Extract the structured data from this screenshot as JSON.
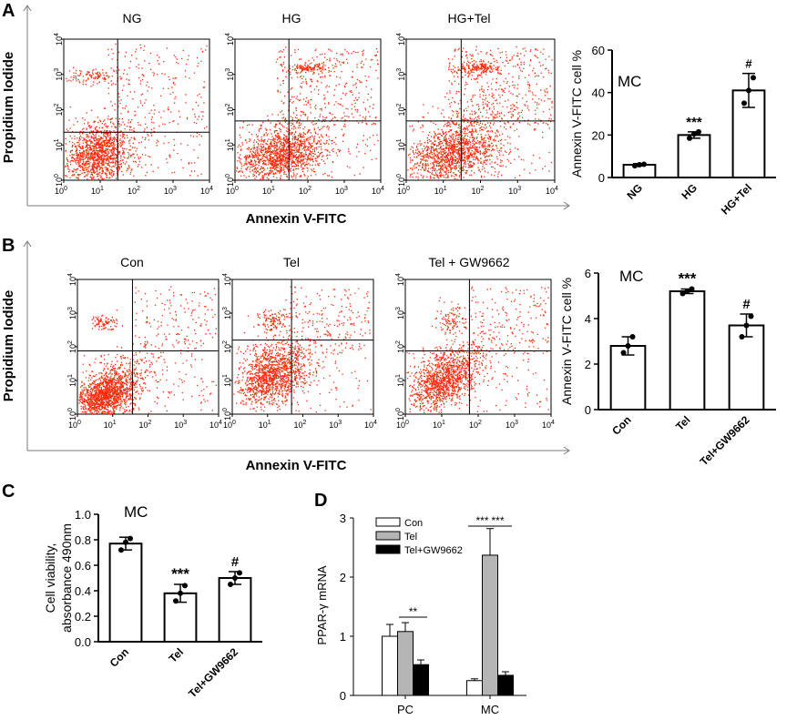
{
  "panels": {
    "A": {
      "letter": "A",
      "flow": {
        "titles": [
          "NG",
          "HG",
          "HG+Tel"
        ],
        "ylabel": "Propidium Iodide",
        "xlabel": "Annexin V-FITC",
        "tick_exponents": [
          "0",
          "1",
          "2",
          "3",
          "4"
        ],
        "tick_base": "10"
      },
      "bar": {
        "inset_label": "MC",
        "ylabel": "Annexin V-FITC cell %"
      }
    },
    "B": {
      "letter": "B",
      "flow": {
        "titles": [
          "Con",
          "Tel",
          "Tel + GW9662"
        ],
        "ylabel": "Propidium Iodide",
        "xlabel": "Annexin V-FITC",
        "tick_exponents": [
          "0",
          "1",
          "2",
          "3",
          "4"
        ],
        "tick_base": "10"
      },
      "bar": {
        "inset_label": "MC",
        "ylabel": "Annexin V-FITC cell %"
      }
    },
    "C": {
      "letter": "C",
      "inset_label": "MC",
      "ylabel_line1": "Cell viability,",
      "ylabel_line2": "absorbance 490nm"
    },
    "D": {
      "letter": "D",
      "ylabel": "PPAR-γ  mRNA"
    }
  },
  "chart_data": [
    {
      "id": "A-bar",
      "type": "bar",
      "categories": [
        "NG",
        "HG",
        "HG+Tel"
      ],
      "values": [
        6,
        20,
        41
      ],
      "errors": [
        0.5,
        1.5,
        8
      ],
      "points": [
        [
          5.5,
          6.0,
          6.2
        ],
        [
          18.5,
          20.5,
          21.5
        ],
        [
          35,
          41,
          47
        ]
      ],
      "significance": [
        "",
        "***",
        "#"
      ],
      "ylim": [
        0,
        60
      ],
      "yticks": [
        "0",
        "20",
        "40",
        "60"
      ],
      "ylabel": "Annexin V-FITC cell %"
    },
    {
      "id": "B-bar",
      "type": "bar",
      "categories": [
        "Con",
        "Tel",
        "Tel+GW9662"
      ],
      "values": [
        2.8,
        5.2,
        3.7
      ],
      "errors": [
        0.4,
        0.1,
        0.5
      ],
      "points": [
        [
          2.5,
          2.8,
          3.2
        ],
        [
          5.1,
          5.2,
          5.3
        ],
        [
          3.2,
          3.7,
          4.1
        ]
      ],
      "significance": [
        "",
        "***",
        "#"
      ],
      "ylim": [
        0,
        6
      ],
      "yticks": [
        "0",
        "2",
        "4",
        "6"
      ],
      "ylabel": "Annexin V-FITC cell %"
    },
    {
      "id": "C-bar",
      "type": "bar",
      "categories": [
        "Con",
        "Tel",
        "Tel+GW9662"
      ],
      "values": [
        0.77,
        0.38,
        0.5
      ],
      "errors": [
        0.05,
        0.07,
        0.05
      ],
      "points": [
        [
          0.72,
          0.78,
          0.81
        ],
        [
          0.32,
          0.38,
          0.44
        ],
        [
          0.45,
          0.5,
          0.54
        ]
      ],
      "significance": [
        "",
        "***",
        "#"
      ],
      "ylim": [
        0,
        1.0
      ],
      "yticks": [
        "0.0",
        "0.2",
        "0.4",
        "0.6",
        "0.8",
        "1.0"
      ],
      "ylabel": "Cell viability, absorbance 490nm"
    },
    {
      "id": "D-bar",
      "type": "bar",
      "groups": [
        "PC",
        "MC"
      ],
      "series": [
        {
          "name": "Con",
          "values": [
            1.0,
            0.25
          ],
          "errors": [
            0.2,
            0.03
          ],
          "color": "#ffffff"
        },
        {
          "name": "Tel",
          "values": [
            1.08,
            2.37
          ],
          "errors": [
            0.15,
            0.45
          ],
          "color": "#b5b5b5"
        },
        {
          "name": "Tel+GW9662",
          "values": [
            0.52,
            0.34
          ],
          "errors": [
            0.08,
            0.06
          ],
          "color": "#000000"
        }
      ],
      "significance": [
        {
          "group": "PC",
          "label": "**",
          "pair": [
            "Tel",
            "Tel+GW9662"
          ]
        },
        {
          "group": "MC",
          "label": "***",
          "pair": [
            "Con",
            "Tel"
          ]
        },
        {
          "group": "MC",
          "label": "***",
          "pair": [
            "Tel",
            "Tel+GW9662"
          ]
        }
      ],
      "ylim": [
        0,
        3
      ],
      "yticks": [
        "0",
        "1",
        "2",
        "3"
      ],
      "ylabel": "PPAR-γ  mRNA"
    }
  ],
  "colors": {
    "dots": "#ff2a0a",
    "axis": "#000000",
    "frame": "#7a7a7a"
  }
}
